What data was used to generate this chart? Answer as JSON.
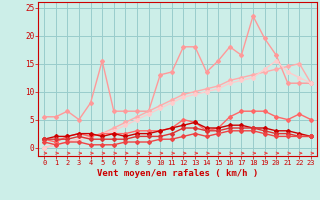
{
  "background_color": "#cceee8",
  "grid_color": "#99cccc",
  "x_labels": [
    "0",
    "1",
    "2",
    "3",
    "4",
    "5",
    "6",
    "7",
    "8",
    "9",
    "10",
    "11",
    "12",
    "13",
    "14",
    "15",
    "16",
    "17",
    "18",
    "19",
    "20",
    "21",
    "22",
    "23"
  ],
  "xlim": [
    -0.5,
    23.5
  ],
  "ylim": [
    -1.5,
    26
  ],
  "yticks": [
    0,
    5,
    10,
    15,
    20,
    25
  ],
  "xlabel": "Vent moyen/en rafales ( km/h )",
  "series": [
    {
      "data": [
        5.5,
        5.5,
        6.5,
        5.0,
        8.0,
        15.5,
        6.5,
        6.5,
        6.5,
        6.5,
        13.0,
        13.5,
        18.0,
        18.0,
        13.5,
        15.5,
        18.0,
        16.5,
        23.5,
        19.5,
        16.5,
        11.5,
        11.5,
        11.5
      ],
      "color": "#ff9999",
      "lw": 1.0,
      "marker": "D",
      "ms": 2.0
    },
    {
      "data": [
        0.0,
        0.5,
        1.0,
        1.5,
        2.0,
        2.5,
        3.5,
        4.5,
        5.5,
        6.5,
        7.5,
        8.5,
        9.5,
        10.0,
        10.5,
        11.0,
        12.0,
        12.5,
        13.0,
        13.5,
        14.0,
        14.5,
        15.0,
        11.5
      ],
      "color": "#ffaaaa",
      "lw": 1.0,
      "marker": "D",
      "ms": 2.0
    },
    {
      "data": [
        0.0,
        0.5,
        1.0,
        1.5,
        2.0,
        2.5,
        3.0,
        4.0,
        5.0,
        6.0,
        7.0,
        8.0,
        9.0,
        9.5,
        10.0,
        10.5,
        11.5,
        12.0,
        12.5,
        14.0,
        15.5,
        13.5,
        12.5,
        11.5
      ],
      "color": "#ffcccc",
      "lw": 1.0,
      "marker": "D",
      "ms": 2.0
    },
    {
      "data": [
        1.5,
        1.0,
        2.0,
        2.5,
        2.0,
        2.5,
        2.5,
        2.5,
        3.0,
        3.0,
        3.0,
        3.5,
        5.0,
        4.5,
        3.0,
        3.5,
        5.5,
        6.5,
        6.5,
        6.5,
        5.5,
        5.0,
        6.0,
        5.0
      ],
      "color": "#ff6666",
      "lw": 1.0,
      "marker": "D",
      "ms": 2.0
    },
    {
      "data": [
        1.5,
        2.0,
        2.0,
        2.5,
        2.5,
        2.0,
        2.5,
        2.0,
        2.5,
        2.5,
        3.0,
        3.5,
        4.0,
        4.5,
        3.5,
        3.5,
        4.0,
        4.0,
        3.5,
        3.5,
        3.0,
        3.0,
        2.5,
        2.0
      ],
      "color": "#cc0000",
      "lw": 1.0,
      "marker": "D",
      "ms": 2.0
    },
    {
      "data": [
        1.5,
        1.5,
        1.5,
        2.0,
        1.5,
        1.5,
        1.5,
        1.5,
        2.0,
        2.0,
        2.0,
        2.5,
        3.5,
        3.5,
        3.0,
        3.0,
        3.5,
        3.5,
        3.5,
        3.0,
        2.5,
        2.5,
        2.0,
        2.0
      ],
      "color": "#dd3333",
      "lw": 1.0,
      "marker": "D",
      "ms": 2.0
    },
    {
      "data": [
        1.0,
        0.5,
        1.0,
        1.0,
        0.5,
        0.5,
        0.5,
        1.0,
        1.0,
        1.0,
        1.5,
        1.5,
        2.0,
        2.5,
        2.0,
        2.5,
        3.0,
        3.0,
        3.0,
        2.5,
        2.0,
        2.0,
        2.0,
        2.0
      ],
      "color": "#ee4444",
      "lw": 1.0,
      "marker": "D",
      "ms": 2.0
    }
  ],
  "arrow_color": "#ee4444",
  "tick_color": "#cc0000",
  "axis_color": "#cc0000",
  "label_color": "#cc0000"
}
